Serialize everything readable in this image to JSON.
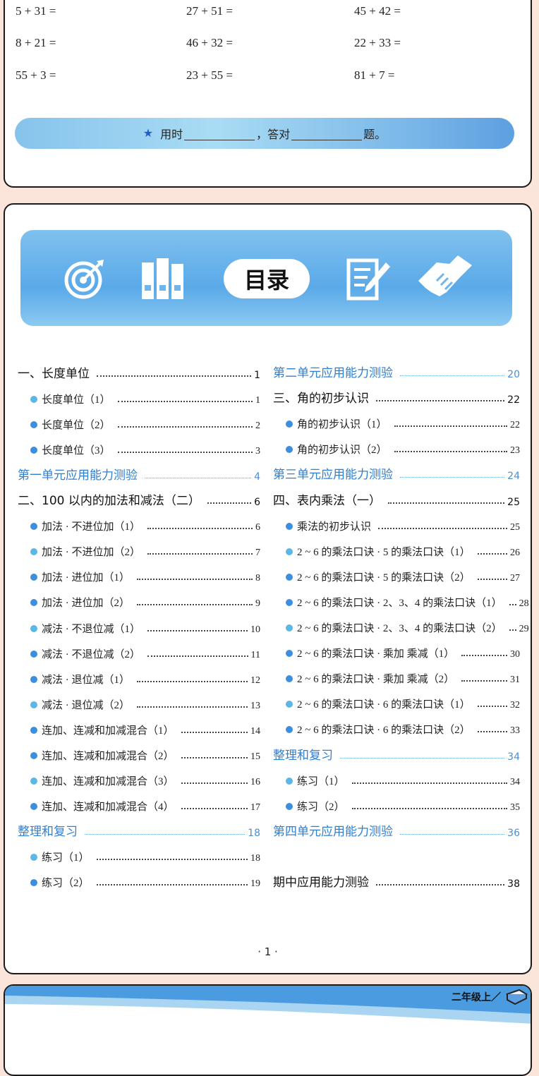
{
  "exercises": [
    [
      "5 + 31 =",
      "27 + 51 =",
      "45 + 42 ="
    ],
    [
      "8 + 21 =",
      "46 + 32 =",
      "22 + 33 ="
    ],
    [
      "55 + 3 =",
      "23 + 55 =",
      "81 + 7 ="
    ]
  ],
  "timebar": {
    "star_icon": "star-icon",
    "time_label": "用时",
    "comma": "，答对",
    "end": "题。"
  },
  "banner": {
    "title": "目录",
    "icons": [
      "target-icon",
      "binders-icon",
      "document-pen-icon",
      "handshake-icon"
    ]
  },
  "colors": {
    "accent": "#2f7fd0",
    "bullet": "#3d8fde",
    "bullet_light": "#5cb7e6",
    "background": "#fbe5da"
  },
  "toc": {
    "left": [
      {
        "type": "chapter",
        "label": "一、长度单位",
        "page": "1"
      },
      {
        "type": "sub",
        "label": "长度单位（1）",
        "page": "1"
      },
      {
        "type": "sub",
        "label": "长度单位（2）",
        "page": "2"
      },
      {
        "type": "sub",
        "label": "长度单位（3）",
        "page": "3"
      },
      {
        "type": "test",
        "label": "第一单元应用能力测验",
        "page": "4"
      },
      {
        "type": "chapter",
        "label": "二、100 以内的加法和减法（二）",
        "page": "6"
      },
      {
        "type": "sub",
        "label": "加法 · 不进位加（1）",
        "page": "6"
      },
      {
        "type": "sub",
        "label": "加法 · 不进位加（2）",
        "page": "7"
      },
      {
        "type": "sub",
        "label": "加法 · 进位加（1）",
        "page": "8"
      },
      {
        "type": "sub",
        "label": "加法 · 进位加（2）",
        "page": "9"
      },
      {
        "type": "sub",
        "label": "减法 · 不退位减（1）",
        "page": "10"
      },
      {
        "type": "sub",
        "label": "减法 · 不退位减（2）",
        "page": "11"
      },
      {
        "type": "sub",
        "label": "减法 · 退位减（1）",
        "page": "12"
      },
      {
        "type": "sub",
        "label": "减法 · 退位减（2）",
        "page": "13"
      },
      {
        "type": "sub",
        "label": "连加、连减和加减混合（1）",
        "page": "14"
      },
      {
        "type": "sub",
        "label": "连加、连减和加减混合（2）",
        "page": "15"
      },
      {
        "type": "sub",
        "label": "连加、连减和加减混合（3）",
        "page": "16"
      },
      {
        "type": "sub",
        "label": "连加、连减和加减混合（4）",
        "page": "17"
      },
      {
        "type": "test",
        "label": "整理和复习",
        "page": "18"
      },
      {
        "type": "sub",
        "label": "练习（1）",
        "page": "18"
      },
      {
        "type": "sub",
        "label": "练习（2）",
        "page": "19"
      }
    ],
    "right": [
      {
        "type": "test",
        "label": "第二单元应用能力测验",
        "page": "20"
      },
      {
        "type": "chapter",
        "label": "三、角的初步认识",
        "page": "22"
      },
      {
        "type": "sub",
        "label": "角的初步认识（1）",
        "page": "22"
      },
      {
        "type": "sub",
        "label": "角的初步认识（2）",
        "page": "23"
      },
      {
        "type": "test",
        "label": "第三单元应用能力测验",
        "page": "24"
      },
      {
        "type": "chapter",
        "label": "四、表内乘法（一）",
        "page": "25"
      },
      {
        "type": "sub",
        "label": "乘法的初步认识",
        "page": "25"
      },
      {
        "type": "sub",
        "label": "2 ~ 6 的乘法口诀 · 5 的乘法口诀（1）",
        "page": "26"
      },
      {
        "type": "sub",
        "label": "2 ~ 6 的乘法口诀 · 5 的乘法口诀（2）",
        "page": "27"
      },
      {
        "type": "sub",
        "label": "2 ~ 6 的乘法口诀 · 2、3、4 的乘法口诀（1）",
        "page": "28"
      },
      {
        "type": "sub",
        "label": "2 ~ 6 的乘法口诀 · 2、3、4 的乘法口诀（2）",
        "page": "29"
      },
      {
        "type": "sub",
        "label": "2 ~ 6 的乘法口诀 · 乘加 乘减（1）",
        "page": "30"
      },
      {
        "type": "sub",
        "label": "2 ~ 6 的乘法口诀 · 乘加 乘减（2）",
        "page": "31"
      },
      {
        "type": "sub",
        "label": "2 ~ 6 的乘法口诀 · 6 的乘法口诀（1）",
        "page": "32"
      },
      {
        "type": "sub",
        "label": "2 ~ 6 的乘法口诀 · 6 的乘法口诀（2）",
        "page": "33"
      },
      {
        "type": "test",
        "label": "整理和复习",
        "page": "34"
      },
      {
        "type": "sub",
        "label": "练习（1）",
        "page": "34"
      },
      {
        "type": "sub",
        "label": "练习（2）",
        "page": "35"
      },
      {
        "type": "test",
        "label": "第四单元应用能力测验",
        "page": "36"
      },
      {
        "type": "chapter",
        "label": "期中应用能力测验",
        "page": "38"
      }
    ]
  },
  "page_number": "· 1 ·",
  "next_page": {
    "grade_label": "二年级上／",
    "book_icon": "book-icon"
  }
}
